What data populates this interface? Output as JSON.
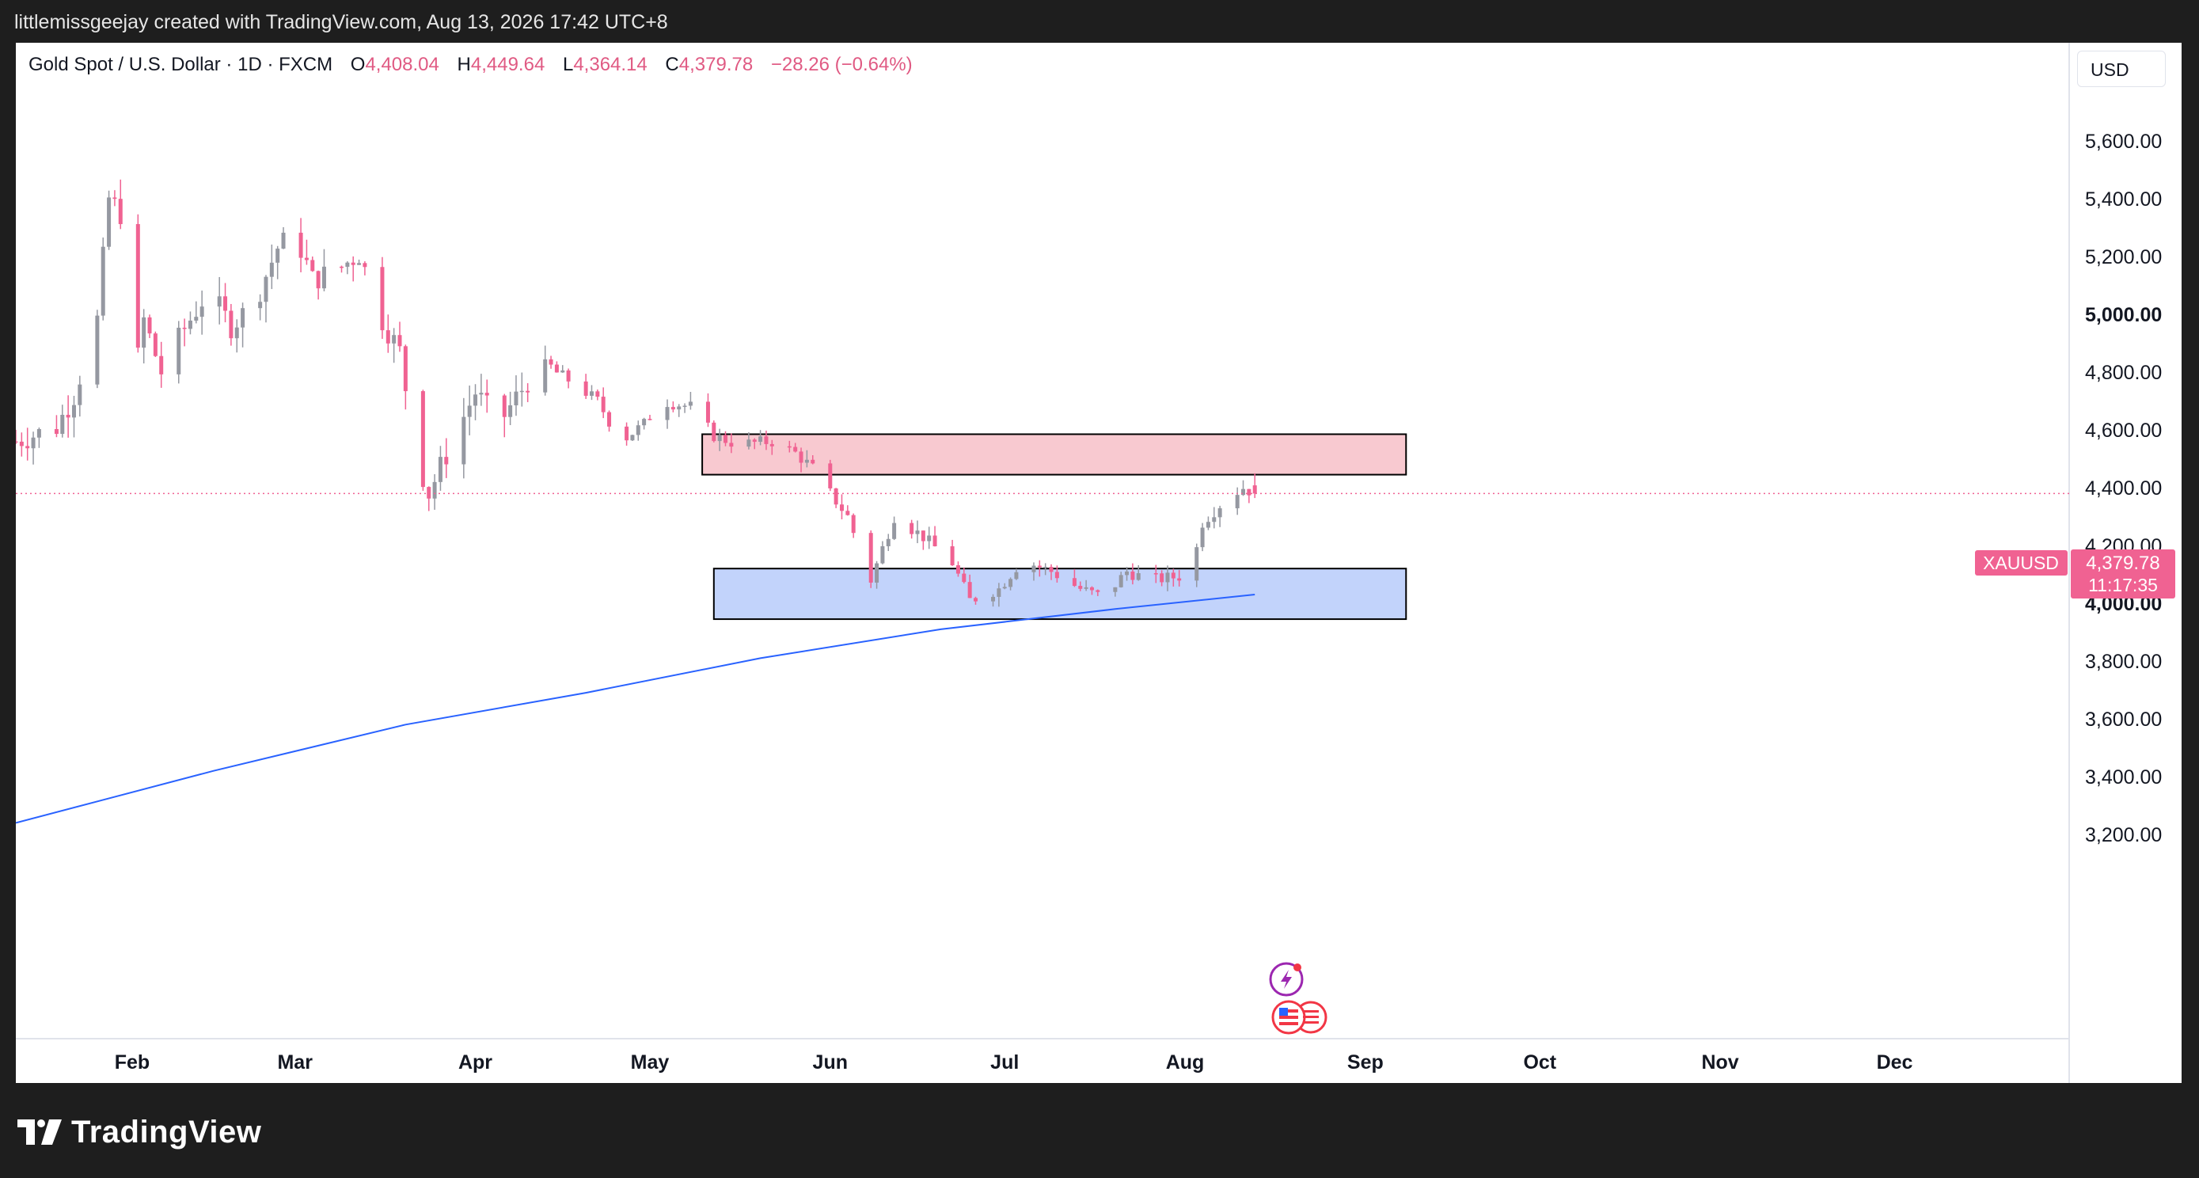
{
  "header": {
    "credit": "littlemissgeejay created with TradingView.com, Aug 13, 2026 17:42 UTC+8"
  },
  "legend": {
    "symbol_desc": "Gold Spot / U.S. Dollar · 1D · FXCM",
    "open_label": "O",
    "open_value": "4,408.04",
    "high_label": "H",
    "high_value": "4,449.64",
    "low_label": "L",
    "low_value": "4,364.14",
    "close_label": "C",
    "close_value": "4,379.78",
    "change": "−28.26 (−0.64%)"
  },
  "currency": "USD",
  "price_tag": {
    "symbol": "XAUUSD",
    "price": "4,379.78",
    "countdown": "11:17:35"
  },
  "footer": {
    "brand": "TradingView"
  },
  "colors": {
    "up": "#9598a1",
    "down": "#f06292",
    "ma": "#2962ff",
    "supply_zone": "#f8c9d0",
    "demand_zone": "#c2d3fb",
    "price_line": "#f06292"
  },
  "icons": [
    "lightning-event-icon",
    "us-flag-event-icon"
  ],
  "chart_data": {
    "type": "candlestick",
    "title": "Gold Spot / U.S. Dollar · 1D · FXCM",
    "y_axis": {
      "ticks": [
        "5,600.00",
        "5,400.00",
        "5,200.00",
        "5,000.00",
        "4,800.00",
        "4,600.00",
        "4,400.00",
        "4,200.00",
        "4,000.00",
        "3,800.00",
        "3,600.00",
        "3,400.00",
        "3,200.00"
      ],
      "tick_values": [
        5600,
        5400,
        5200,
        5000,
        4800,
        4600,
        4400,
        4200,
        4000,
        3800,
        3600,
        3400,
        3200
      ],
      "bold_ticks": [
        5000,
        4000
      ],
      "ylim": [
        3000,
        5800
      ]
    },
    "x_axis": {
      "labels": [
        "Feb",
        "Mar",
        "Apr",
        "May",
        "Jun",
        "Jul",
        "Aug",
        "Sep",
        "Oct",
        "Nov",
        "Dec"
      ],
      "label_dates": [
        "2026-02-01",
        "2026-03-01",
        "2026-04-01",
        "2026-05-01",
        "2026-06-01",
        "2026-07-01",
        "2026-08-01",
        "2026-09-01",
        "2026-10-01",
        "2026-11-01",
        "2026-12-01"
      ],
      "xlim": [
        "2026-01-12",
        "2026-12-31"
      ]
    },
    "anchors": [
      [
        "2026-01-12",
        4560
      ],
      [
        "2026-01-19",
        4610
      ],
      [
        "2026-01-22",
        4720
      ],
      [
        "2026-01-26",
        4980
      ],
      [
        "2026-01-28",
        5400
      ],
      [
        "2026-01-30",
        5350
      ],
      [
        "2026-02-01",
        4720
      ],
      [
        "2026-02-03",
        4980
      ],
      [
        "2026-02-06",
        4800
      ],
      [
        "2026-02-10",
        4950
      ],
      [
        "2026-02-14",
        5080
      ],
      [
        "2026-02-18",
        4960
      ],
      [
        "2026-02-22",
        5040
      ],
      [
        "2026-02-26",
        5230
      ],
      [
        "2026-03-01",
        5280
      ],
      [
        "2026-03-04",
        5120
      ],
      [
        "2026-03-08",
        5150
      ],
      [
        "2026-03-12",
        5210
      ],
      [
        "2026-03-16",
        4980
      ],
      [
        "2026-03-19",
        4870
      ],
      [
        "2026-03-22",
        4500
      ],
      [
        "2026-03-24",
        4380
      ],
      [
        "2026-03-28",
        4560
      ],
      [
        "2026-04-01",
        4730
      ],
      [
        "2026-04-05",
        4620
      ],
      [
        "2026-04-10",
        4770
      ],
      [
        "2026-04-14",
        4810
      ],
      [
        "2026-04-18",
        4760
      ],
      [
        "2026-04-22",
        4700
      ],
      [
        "2026-04-26",
        4560
      ],
      [
        "2026-04-30",
        4620
      ],
      [
        "2026-05-03",
        4700
      ],
      [
        "2026-05-08",
        4680
      ],
      [
        "2026-05-12",
        4580
      ],
      [
        "2026-05-16",
        4550
      ],
      [
        "2026-05-22",
        4560
      ],
      [
        "2026-05-26",
        4520
      ],
      [
        "2026-05-30",
        4450
      ],
      [
        "2026-06-01",
        4380
      ],
      [
        "2026-06-04",
        4300
      ],
      [
        "2026-06-08",
        4080
      ],
      [
        "2026-06-12",
        4300
      ],
      [
        "2026-06-17",
        4230
      ],
      [
        "2026-06-22",
        4140
      ],
      [
        "2026-06-25",
        4010
      ],
      [
        "2026-06-30",
        4050
      ],
      [
        "2026-07-04",
        4150
      ],
      [
        "2026-07-09",
        4110
      ],
      [
        "2026-07-14",
        4050
      ],
      [
        "2026-07-18",
        4020
      ],
      [
        "2026-07-22",
        4110
      ],
      [
        "2026-07-26",
        4080
      ],
      [
        "2026-07-30",
        4090
      ],
      [
        "2026-08-02",
        4100
      ],
      [
        "2026-08-04",
        4280
      ],
      [
        "2026-08-08",
        4360
      ],
      [
        "2026-08-11",
        4400
      ],
      [
        "2026-08-13",
        4380
      ]
    ],
    "last_candle": {
      "date": "2026-08-13",
      "open": 4408.04,
      "high": 4449.64,
      "low": 4364.14,
      "close": 4379.78
    },
    "moving_average": {
      "points": [
        [
          "2026-01-12",
          3240
        ],
        [
          "2026-02-15",
          3420
        ],
        [
          "2026-03-20",
          3580
        ],
        [
          "2026-04-20",
          3690
        ],
        [
          "2026-05-20",
          3810
        ],
        [
          "2026-06-20",
          3910
        ],
        [
          "2026-07-20",
          3980
        ],
        [
          "2026-08-13",
          4030
        ]
      ]
    },
    "zones": [
      {
        "name": "supply-zone",
        "x_start": "2026-05-10",
        "x_end": "2026-09-08",
        "y_low": 4445,
        "y_high": 4585
      },
      {
        "name": "demand-zone",
        "x_start": "2026-05-12",
        "x_end": "2026-09-08",
        "y_low": 3945,
        "y_high": 4120
      }
    ],
    "last_price_line": 4379.78,
    "grid": false
  }
}
